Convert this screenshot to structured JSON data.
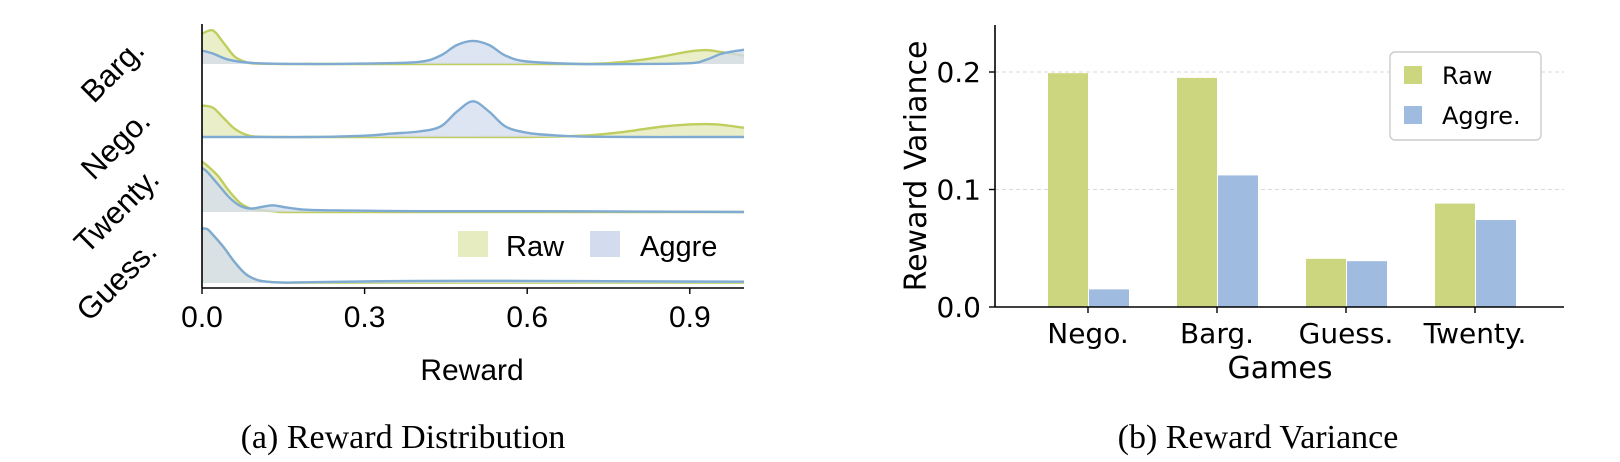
{
  "colors": {
    "raw_fill": "#e6ecbf",
    "raw_line": "#bfce5e",
    "aggre_fill": "#d3dcee",
    "aggre_line": "#7faad1",
    "raw_bar": "#ccd67f",
    "aggre_bar": "#a0bbe0",
    "grid": "#d9d9d9",
    "axis": "#000000"
  },
  "chart_data": [
    {
      "type": "area",
      "caption": "(a) Reward Distribution",
      "xlabel": "Reward",
      "xlim": [
        0.0,
        1.0
      ],
      "xticks": [
        "0.0",
        "0.3",
        "0.6",
        "0.9"
      ],
      "legend": {
        "entries": [
          "Raw",
          "Aggre"
        ],
        "position": "lower-right"
      },
      "rows": [
        "Barg.",
        "Nego.",
        "Twenty.",
        "Guess."
      ],
      "series": [
        {
          "name": "Raw",
          "row": "Barg.",
          "x": [
            0.0,
            0.02,
            0.04,
            0.06,
            0.08,
            0.1,
            0.15,
            0.2,
            0.3,
            0.4,
            0.5,
            0.6,
            0.7,
            0.75,
            0.8,
            0.85,
            0.9,
            0.93,
            0.96,
            1.0
          ],
          "y": [
            0.72,
            0.8,
            0.5,
            0.18,
            0.05,
            0.01,
            0.0,
            0.0,
            0.0,
            0.0,
            0.0,
            0.0,
            0.0,
            0.02,
            0.08,
            0.18,
            0.3,
            0.33,
            0.28,
            0.2
          ]
        },
        {
          "name": "Aggre",
          "row": "Barg.",
          "x": [
            0.0,
            0.02,
            0.05,
            0.1,
            0.2,
            0.3,
            0.4,
            0.44,
            0.47,
            0.5,
            0.53,
            0.56,
            0.6,
            0.7,
            0.8,
            0.9,
            0.93,
            0.96,
            1.0
          ],
          "y": [
            0.32,
            0.25,
            0.1,
            0.02,
            0.0,
            0.01,
            0.05,
            0.2,
            0.45,
            0.55,
            0.45,
            0.2,
            0.06,
            0.0,
            0.0,
            0.02,
            0.1,
            0.25,
            0.34
          ]
        },
        {
          "name": "Raw",
          "row": "Nego.",
          "x": [
            0.0,
            0.02,
            0.04,
            0.06,
            0.08,
            0.1,
            0.15,
            0.2,
            0.4,
            0.6,
            0.7,
            0.75,
            0.8,
            0.85,
            0.9,
            0.95,
            1.0
          ],
          "y": [
            0.75,
            0.7,
            0.45,
            0.2,
            0.06,
            0.01,
            0.0,
            0.0,
            0.0,
            0.0,
            0.03,
            0.08,
            0.16,
            0.25,
            0.3,
            0.3,
            0.22
          ]
        },
        {
          "name": "Aggre",
          "row": "Nego.",
          "x": [
            0.0,
            0.1,
            0.2,
            0.3,
            0.35,
            0.4,
            0.44,
            0.47,
            0.5,
            0.53,
            0.56,
            0.6,
            0.65,
            0.7,
            0.8,
            0.9,
            1.0
          ],
          "y": [
            0.0,
            0.0,
            0.0,
            0.03,
            0.08,
            0.13,
            0.25,
            0.6,
            0.85,
            0.6,
            0.25,
            0.1,
            0.04,
            0.01,
            0.0,
            0.0,
            0.0
          ]
        },
        {
          "name": "Raw",
          "row": "Twenty.",
          "x": [
            0.0,
            0.01,
            0.03,
            0.05,
            0.07,
            0.09,
            0.11,
            0.13,
            0.15,
            0.2,
            0.3,
            0.5,
            0.7,
            1.0
          ],
          "y": [
            1.2,
            1.1,
            0.85,
            0.5,
            0.22,
            0.08,
            0.04,
            0.02,
            0.0,
            0.0,
            0.0,
            0.0,
            0.0,
            0.0
          ]
        },
        {
          "name": "Aggre",
          "row": "Twenty.",
          "x": [
            0.0,
            0.01,
            0.03,
            0.05,
            0.07,
            0.09,
            0.11,
            0.13,
            0.15,
            0.17,
            0.2,
            0.3,
            0.4,
            0.6,
            0.8,
            1.0
          ],
          "y": [
            1.05,
            0.95,
            0.65,
            0.35,
            0.15,
            0.08,
            0.12,
            0.16,
            0.12,
            0.08,
            0.05,
            0.03,
            0.02,
            0.02,
            0.01,
            0.0
          ]
        },
        {
          "name": "Raw",
          "row": "Guess.",
          "x": [
            0.0,
            0.01,
            0.02,
            0.04,
            0.06,
            0.08,
            0.1,
            0.12,
            0.15,
            0.2,
            0.5,
            0.8,
            1.0
          ],
          "y": [
            1.3,
            1.28,
            1.15,
            0.85,
            0.5,
            0.22,
            0.08,
            0.03,
            0.01,
            0.01,
            0.01,
            0.01,
            0.01
          ]
        },
        {
          "name": "Aggre",
          "row": "Guess.",
          "x": [
            0.0,
            0.01,
            0.02,
            0.04,
            0.06,
            0.08,
            0.1,
            0.12,
            0.15,
            0.2,
            0.4,
            0.6,
            0.8,
            1.0
          ],
          "y": [
            1.3,
            1.28,
            1.15,
            0.85,
            0.5,
            0.22,
            0.08,
            0.03,
            0.01,
            0.02,
            0.05,
            0.05,
            0.04,
            0.03
          ]
        }
      ]
    },
    {
      "type": "bar",
      "caption": "(b) Reward Variance",
      "xlabel": "Games",
      "ylabel": "Reward Variance",
      "categories": [
        "Nego.",
        "Barg.",
        "Guess.",
        "Twenty."
      ],
      "ylim": [
        0.0,
        0.24
      ],
      "yticks": [
        "0.0",
        "0.1",
        "0.2"
      ],
      "grid": "horizontal dashed",
      "legend": {
        "entries": [
          "Raw",
          "Aggre."
        ],
        "position": "top-right"
      },
      "series": [
        {
          "name": "Raw",
          "values": [
            0.199,
            0.195,
            0.041,
            0.088
          ]
        },
        {
          "name": "Aggre.",
          "values": [
            0.015,
            0.112,
            0.039,
            0.074
          ]
        }
      ]
    }
  ]
}
